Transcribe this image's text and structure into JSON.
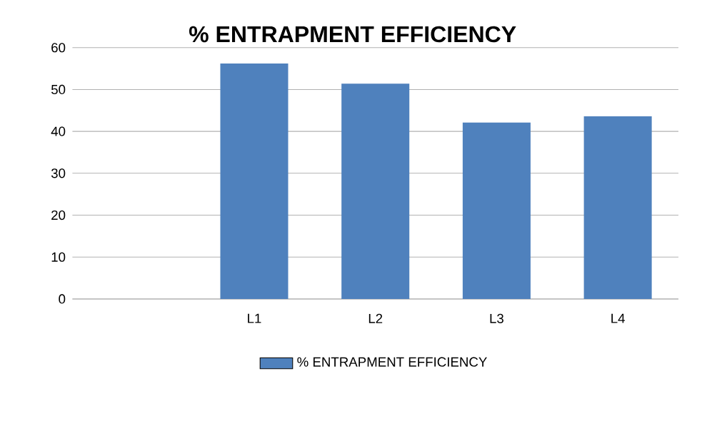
{
  "chart_data": {
    "type": "bar",
    "title": "% ENTRAPMENT EFFICIENCY",
    "categories": [
      null,
      "L1",
      "L2",
      "L3",
      "L4"
    ],
    "series": [
      {
        "name": "% ENTRAPMENT  EFFICIENCY",
        "color": "#4f81bd",
        "values": [
          null,
          56.2,
          51.4,
          42.1,
          43.6
        ]
      }
    ],
    "ylim": [
      0,
      60
    ],
    "yticks": [
      0,
      10,
      20,
      30,
      40,
      50,
      60
    ],
    "grid": "y",
    "legend": "bottom"
  }
}
